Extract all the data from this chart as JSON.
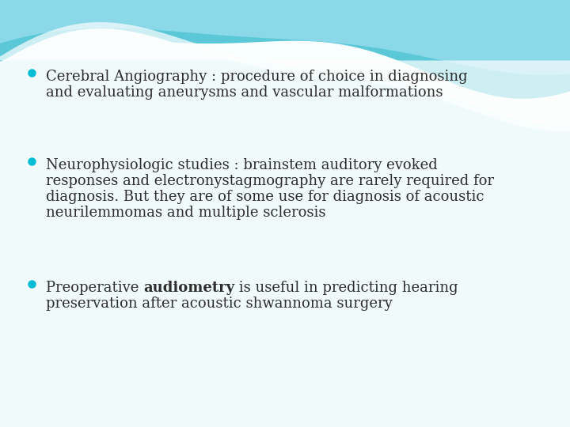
{
  "background_color": "#eaf9fb",
  "bullet_color": "#00bcd4",
  "text_color": "#2d2d2d",
  "body_color": "#ffffff",
  "wave_colors": [
    "#4ec8d4",
    "#7dd8e0",
    "#a8e8f0",
    "#c8f0f8"
  ],
  "font_size": 13.0,
  "fig_width": 7.2,
  "fig_height": 5.4,
  "dpi": 100,
  "bullet1_lines": [
    "Cerebral Angiography : procedure of choice in diagnosing",
    "and evaluating aneurysms and vascular malformations"
  ],
  "bullet2_lines": [
    "Neurophysiologic studies : brainstem auditory evoked",
    "responses and electronystagmography are rarely required for",
    "diagnosis. But they are of some use for diagnosis of acoustic",
    "neurilemmomas and multiple sclerosis"
  ],
  "bullet3_line1_before": "Preoperative ",
  "bullet3_line1_bold": "audiometry",
  "bullet3_line1_after": " is useful in predicting hearing",
  "bullet3_line2": "preservation after acoustic shwannoma surgery"
}
